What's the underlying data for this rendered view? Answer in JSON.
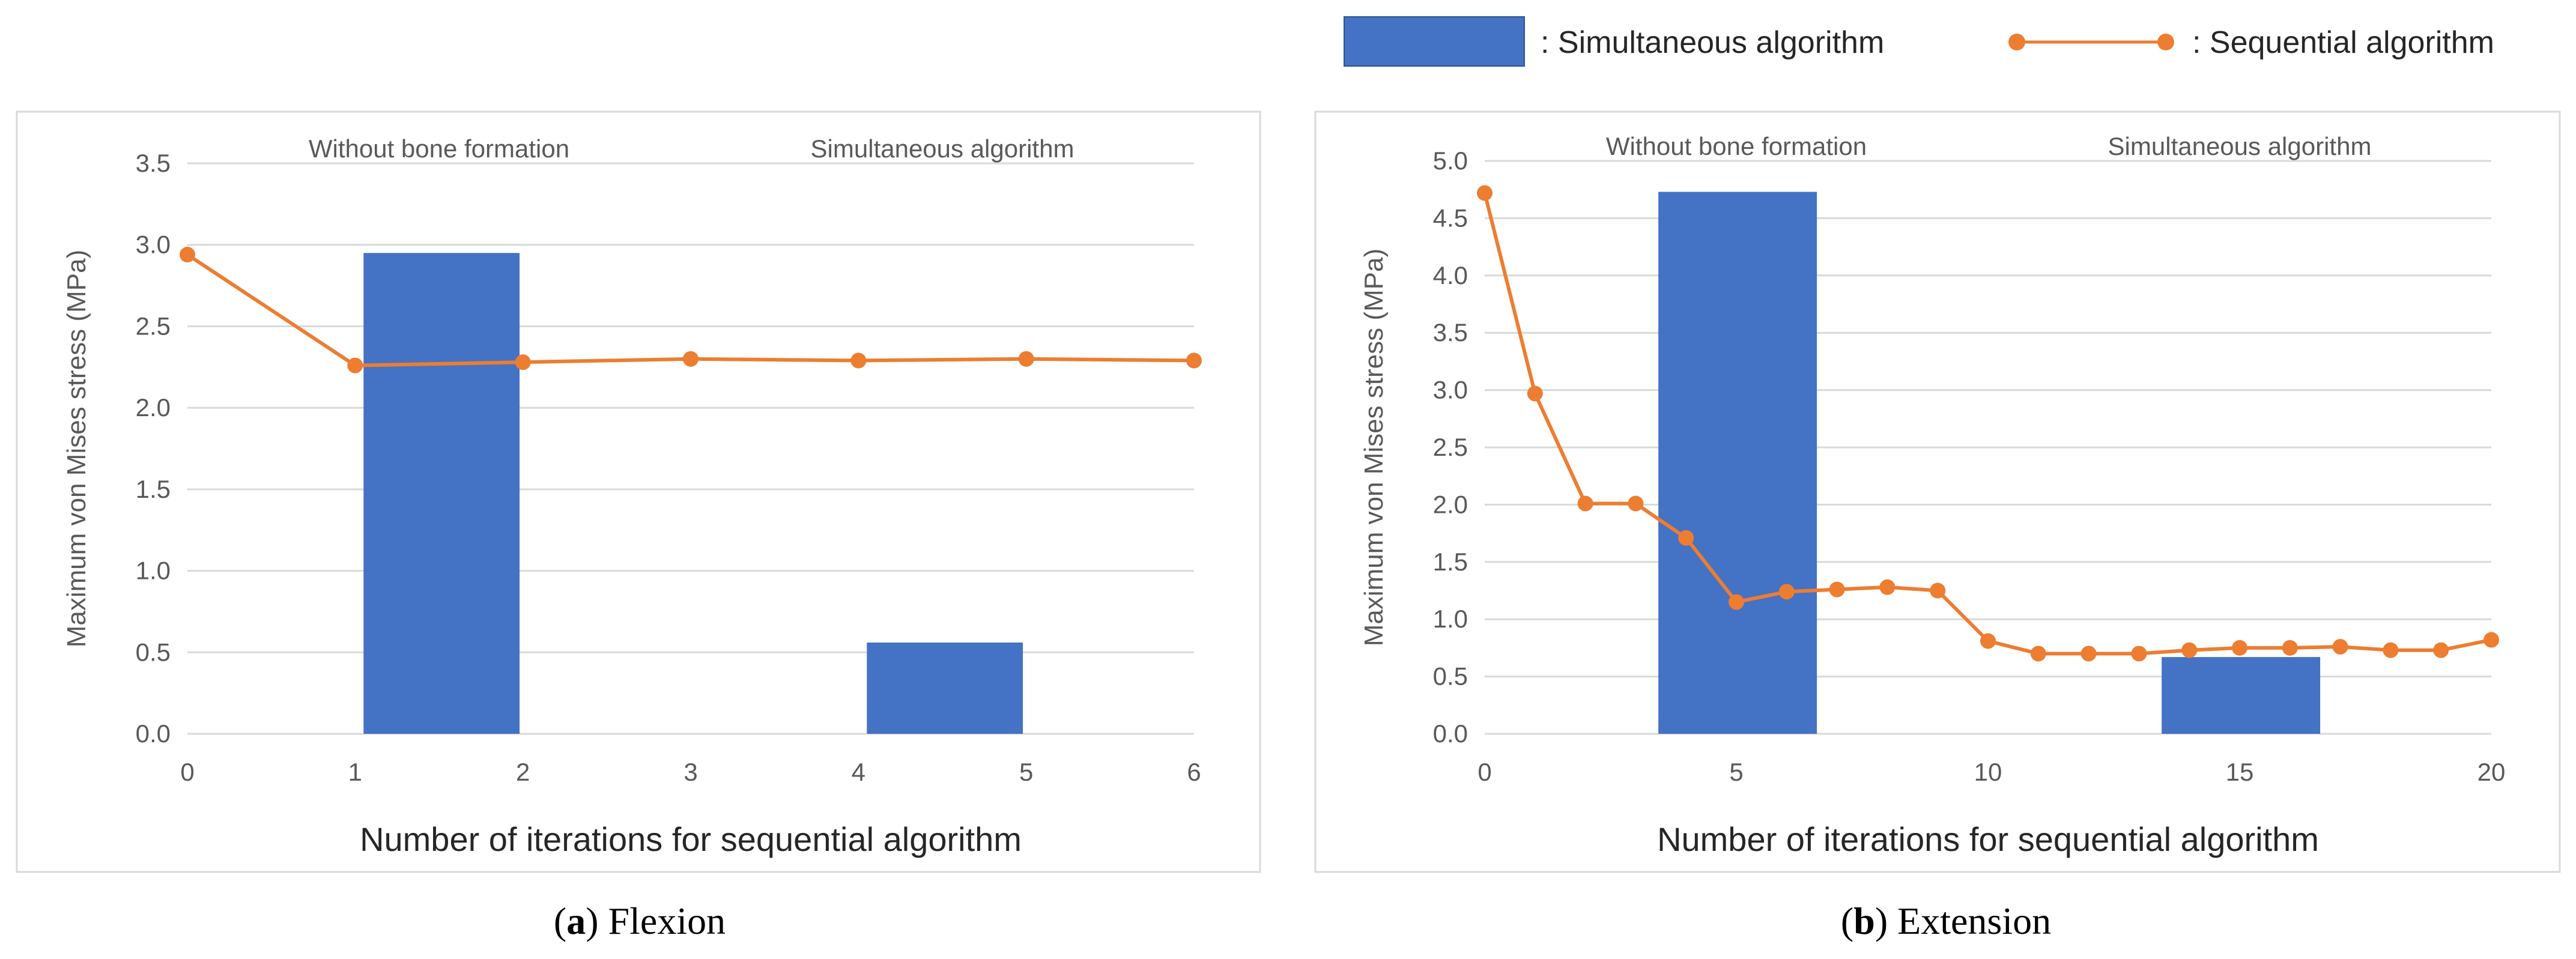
{
  "legend": {
    "bar_label": ": Simultaneous algorithm",
    "line_label": ": Sequential algorithm"
  },
  "colors": {
    "bar": "#4472C4",
    "line": "#ED7D31",
    "grid": "#D9D9D9",
    "frame": "#D9D9D9"
  },
  "chart_data": [
    {
      "type": "bar+line",
      "id": "flexion",
      "caption_letter": "a",
      "caption_text": "Flexion",
      "xlabel": "Number of iterations for sequential algorithm",
      "ylabel": "Maximum von Mises stress (MPa)",
      "xlim": [
        0,
        6
      ],
      "ylim": [
        0,
        3.5
      ],
      "x_ticks": [
        0,
        1,
        2,
        3,
        4,
        5,
        6
      ],
      "y_ticks": [
        "0.0",
        "0.5",
        "1.0",
        "1.5",
        "2.0",
        "2.5",
        "3.0",
        "3.5"
      ],
      "grid": "horizontal",
      "bar_categories": [
        "Without bone formation",
        "Simultaneous algorithm"
      ],
      "bars": [
        {
          "x_from": 1.05,
          "x_to": 1.98,
          "value": 2.95
        },
        {
          "x_from": 4.05,
          "x_to": 4.98,
          "value": 0.56
        }
      ],
      "line": {
        "x": [
          0,
          1,
          2,
          3,
          4,
          5,
          6
        ],
        "y": [
          2.94,
          2.26,
          2.28,
          2.3,
          2.29,
          2.3,
          2.29
        ]
      }
    },
    {
      "type": "bar+line",
      "id": "extension",
      "caption_letter": "b",
      "caption_text": "Extension",
      "xlabel": "Number of iterations for sequential algorithm",
      "ylabel": "Maximum von Mises stress (MPa)",
      "xlim": [
        0,
        20
      ],
      "ylim": [
        0,
        5
      ],
      "x_ticks": [
        0,
        5,
        10,
        15,
        20
      ],
      "y_ticks": [
        "0.0",
        "0.5",
        "1.0",
        "1.5",
        "2.0",
        "2.5",
        "3.0",
        "3.5",
        "4.0",
        "4.5",
        "5.0"
      ],
      "grid": "horizontal",
      "bar_categories": [
        "Without bone formation",
        "Simultaneous algorithm"
      ],
      "bars": [
        {
          "x_from": 3.45,
          "x_to": 6.6,
          "value": 4.73
        },
        {
          "x_from": 13.45,
          "x_to": 16.6,
          "value": 0.67
        }
      ],
      "line": {
        "x": [
          0,
          1,
          2,
          3,
          4,
          5,
          6,
          7,
          8,
          9,
          10,
          11,
          12,
          13,
          14,
          15,
          16,
          17,
          18,
          19,
          20
        ],
        "y": [
          4.72,
          2.97,
          2.01,
          2.01,
          1.71,
          1.15,
          1.24,
          1.26,
          1.28,
          1.25,
          0.81,
          0.7,
          0.7,
          0.7,
          0.73,
          0.75,
          0.75,
          0.76,
          0.73,
          0.73,
          0.82
        ]
      }
    }
  ]
}
